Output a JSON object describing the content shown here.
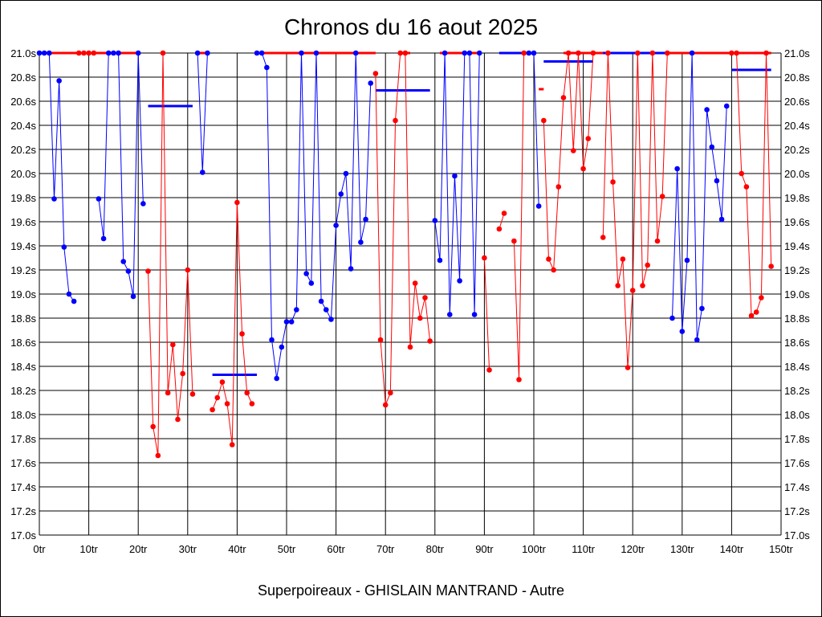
{
  "chart_data": {
    "type": "line",
    "title": "Chronos du 16 aout 2025",
    "subtitle": "Superpoireaux - GHISLAIN MANTRAND - Autre",
    "xlim": [
      0,
      150
    ],
    "ylim": [
      17.0,
      21.0
    ],
    "grid": true,
    "x_ticks": [
      {
        "value": 0,
        "label": "0tr"
      },
      {
        "value": 10,
        "label": "10tr"
      },
      {
        "value": 20,
        "label": "20tr"
      },
      {
        "value": 30,
        "label": "30tr"
      },
      {
        "value": 40,
        "label": "40tr"
      },
      {
        "value": 50,
        "label": "50tr"
      },
      {
        "value": 60,
        "label": "60tr"
      },
      {
        "value": 70,
        "label": "70tr"
      },
      {
        "value": 80,
        "label": "80tr"
      },
      {
        "value": 90,
        "label": "90tr"
      },
      {
        "value": 100,
        "label": "100tr"
      },
      {
        "value": 110,
        "label": "110tr"
      },
      {
        "value": 120,
        "label": "120tr"
      },
      {
        "value": 130,
        "label": "130tr"
      },
      {
        "value": 140,
        "label": "140tr"
      },
      {
        "value": 150,
        "label": "150tr"
      }
    ],
    "y_ticks": [
      {
        "value": 21.0,
        "label": "21.0s"
      },
      {
        "value": 20.8,
        "label": "20.8s"
      },
      {
        "value": 20.6,
        "label": "20.6s"
      },
      {
        "value": 20.4,
        "label": "20.4s"
      },
      {
        "value": 20.2,
        "label": "20.2s"
      },
      {
        "value": 20.0,
        "label": "20.0s"
      },
      {
        "value": 19.8,
        "label": "19.8s"
      },
      {
        "value": 19.6,
        "label": "19.6s"
      },
      {
        "value": 19.4,
        "label": "19.4s"
      },
      {
        "value": 19.2,
        "label": "19.2s"
      },
      {
        "value": 19.0,
        "label": "19.0s"
      },
      {
        "value": 18.8,
        "label": "18.8s"
      },
      {
        "value": 18.6,
        "label": "18.6s"
      },
      {
        "value": 18.4,
        "label": "18.4s"
      },
      {
        "value": 18.2,
        "label": "18.2s"
      },
      {
        "value": 18.0,
        "label": "18.0s"
      },
      {
        "value": 17.8,
        "label": "17.8s"
      },
      {
        "value": 17.6,
        "label": "17.6s"
      },
      {
        "value": 17.4,
        "label": "17.4s"
      },
      {
        "value": 17.2,
        "label": "17.2s"
      },
      {
        "value": 17.0,
        "label": "17.0s"
      }
    ],
    "colors": {
      "blue": "#0000ff",
      "red": "#ff0000"
    },
    "series": [
      {
        "color": "blue",
        "points": [
          [
            0,
            21.0
          ],
          [
            1,
            21.0
          ],
          [
            2,
            21.0
          ],
          [
            3,
            19.79
          ],
          [
            4,
            20.77
          ],
          [
            5,
            19.39
          ],
          [
            6,
            19.0
          ],
          [
            7,
            18.94
          ]
        ]
      },
      {
        "color": "red",
        "points": [
          [
            8,
            21.0
          ],
          [
            9,
            21.0
          ],
          [
            10,
            21.0
          ],
          [
            11,
            21.0
          ]
        ]
      },
      {
        "color": "blue",
        "points": [
          [
            12,
            19.79
          ],
          [
            13,
            19.46
          ],
          [
            14,
            21.0
          ],
          [
            15,
            21.0
          ],
          [
            16,
            21.0
          ],
          [
            17,
            19.27
          ],
          [
            18,
            19.19
          ],
          [
            19,
            18.98
          ],
          [
            20,
            21.0
          ],
          [
            21,
            19.75
          ]
        ]
      },
      {
        "color": "red",
        "points": [
          [
            22,
            19.19
          ],
          [
            23,
            17.9
          ],
          [
            24,
            17.66
          ],
          [
            25,
            21.0
          ],
          [
            26,
            18.18
          ],
          [
            27,
            18.58
          ],
          [
            28,
            17.96
          ],
          [
            29,
            18.34
          ],
          [
            30,
            19.2
          ],
          [
            31,
            18.17
          ]
        ]
      },
      {
        "color": "blue",
        "points": [
          [
            32,
            21.0
          ],
          [
            33,
            20.01
          ],
          [
            34,
            21.0
          ]
        ]
      },
      {
        "color": "red",
        "points": [
          [
            35,
            18.04
          ],
          [
            36,
            18.14
          ],
          [
            37,
            18.27
          ],
          [
            38,
            18.09
          ],
          [
            39,
            17.75
          ],
          [
            40,
            19.76
          ],
          [
            41,
            18.67
          ],
          [
            42,
            18.18
          ],
          [
            43,
            18.09
          ]
        ]
      },
      {
        "color": "blue",
        "points": [
          [
            44,
            21.0
          ],
          [
            45,
            21.0
          ],
          [
            46,
            20.88
          ],
          [
            47,
            18.62
          ],
          [
            48,
            18.3
          ],
          [
            49,
            18.56
          ],
          [
            50,
            18.77
          ],
          [
            51,
            18.77
          ],
          [
            52,
            18.87
          ],
          [
            53,
            21.0
          ],
          [
            54,
            19.17
          ],
          [
            55,
            19.09
          ],
          [
            56,
            21.0
          ],
          [
            57,
            18.94
          ],
          [
            58,
            18.87
          ],
          [
            59,
            18.79
          ],
          [
            60,
            19.57
          ],
          [
            61,
            19.83
          ],
          [
            62,
            20.0
          ],
          [
            63,
            19.21
          ],
          [
            64,
            21.0
          ],
          [
            65,
            19.43
          ],
          [
            66,
            19.62
          ],
          [
            67,
            20.75
          ]
        ]
      },
      {
        "color": "red",
        "points": [
          [
            68,
            20.83
          ],
          [
            69,
            18.62
          ],
          [
            70,
            18.08
          ],
          [
            71,
            18.18
          ],
          [
            72,
            20.44
          ],
          [
            73,
            21.0
          ],
          [
            74,
            21.0
          ],
          [
            75,
            18.56
          ],
          [
            76,
            19.09
          ],
          [
            77,
            18.8
          ],
          [
            78,
            18.97
          ],
          [
            79,
            18.61
          ]
        ]
      },
      {
        "color": "blue",
        "points": [
          [
            80,
            19.61
          ],
          [
            81,
            19.28
          ],
          [
            82,
            21.0
          ],
          [
            83,
            18.83
          ],
          [
            84,
            19.98
          ],
          [
            85,
            19.11
          ],
          [
            86,
            21.0
          ],
          [
            87,
            21.0
          ],
          [
            88,
            18.83
          ],
          [
            89,
            21.0
          ]
        ]
      },
      {
        "color": "red",
        "points": [
          [
            90,
            19.3
          ],
          [
            91,
            18.37
          ]
        ]
      },
      {
        "color": "red",
        "points": [
          [
            93,
            19.54
          ],
          [
            94,
            19.67
          ]
        ]
      },
      {
        "color": "red",
        "points": [
          [
            96,
            19.44
          ],
          [
            97,
            18.29
          ],
          [
            98,
            21.0
          ]
        ]
      },
      {
        "color": "blue",
        "points": [
          [
            99,
            21.0
          ],
          [
            100,
            21.0
          ],
          [
            101,
            19.73
          ]
        ]
      },
      {
        "color": "red",
        "points": [
          [
            102,
            20.44
          ],
          [
            103,
            19.29
          ],
          [
            104,
            19.2
          ],
          [
            105,
            19.89
          ],
          [
            106,
            20.63
          ],
          [
            107,
            21.0
          ],
          [
            108,
            20.19
          ],
          [
            109,
            21.0
          ],
          [
            110,
            20.04
          ],
          [
            111,
            20.29
          ],
          [
            112,
            21.0
          ]
        ]
      },
      {
        "color": "red",
        "points": [
          [
            114,
            19.47
          ],
          [
            115,
            21.0
          ],
          [
            116,
            19.93
          ],
          [
            117,
            19.07
          ],
          [
            118,
            19.29
          ],
          [
            119,
            18.39
          ],
          [
            120,
            19.03
          ],
          [
            121,
            21.0
          ],
          [
            122,
            19.07
          ],
          [
            123,
            19.24
          ],
          [
            124,
            21.0
          ],
          [
            125,
            19.44
          ],
          [
            126,
            19.81
          ],
          [
            127,
            21.0
          ]
        ]
      },
      {
        "color": "blue",
        "points": [
          [
            128,
            18.8
          ],
          [
            129,
            20.04
          ],
          [
            130,
            18.69
          ],
          [
            131,
            19.28
          ],
          [
            132,
            21.0
          ],
          [
            133,
            18.62
          ],
          [
            134,
            18.88
          ],
          [
            135,
            20.53
          ],
          [
            136,
            20.22
          ],
          [
            137,
            19.94
          ],
          [
            138,
            19.62
          ],
          [
            139,
            20.56
          ]
        ]
      },
      {
        "color": "red",
        "points": [
          [
            140,
            21.0
          ],
          [
            141,
            21.0
          ],
          [
            142,
            20.0
          ],
          [
            143,
            19.89
          ],
          [
            144,
            18.82
          ],
          [
            145,
            18.85
          ],
          [
            146,
            18.97
          ],
          [
            147,
            21.0
          ],
          [
            148,
            19.23
          ]
        ]
      }
    ],
    "plateaus": [
      {
        "color": "red",
        "x": [
          0,
          8
        ],
        "y": 21.0
      },
      {
        "color": "red",
        "x": [
          11,
          20
        ],
        "y": 21.0
      },
      {
        "color": "red",
        "x": [
          32,
          34
        ],
        "y": 21.0
      },
      {
        "color": "red",
        "x": [
          45,
          68
        ],
        "y": 21.0
      },
      {
        "color": "red",
        "x": [
          73,
          75
        ],
        "y": 21.0
      },
      {
        "color": "red",
        "x": [
          81,
          89
        ],
        "y": 21.0
      },
      {
        "color": "red",
        "x": [
          94,
          99
        ],
        "y": 21.0
      },
      {
        "color": "red",
        "x": [
          106,
          113
        ],
        "y": 21.0
      },
      {
        "color": "red",
        "x": [
          113,
          127
        ],
        "y": 21.0
      },
      {
        "color": "red",
        "x": [
          127,
          140
        ],
        "y": 21.0
      },
      {
        "color": "red",
        "x": [
          140,
          148
        ],
        "y": 21.0
      },
      {
        "color": "red",
        "x": [
          101,
          102
        ],
        "y": 20.7
      }
    ],
    "averages": [
      {
        "color": "blue",
        "x": [
          22,
          31
        ],
        "y": 20.56
      },
      {
        "color": "blue",
        "x": [
          35,
          44
        ],
        "y": 18.33
      },
      {
        "color": "blue",
        "x": [
          68,
          79
        ],
        "y": 20.69
      },
      {
        "color": "blue",
        "x": [
          93,
          98
        ],
        "y": 21.0
      },
      {
        "color": "blue",
        "x": [
          102,
          112
        ],
        "y": 20.93
      },
      {
        "color": "blue",
        "x": [
          114,
          127
        ],
        "y": 21.0
      },
      {
        "color": "blue",
        "x": [
          140,
          148
        ],
        "y": 20.86
      }
    ]
  }
}
